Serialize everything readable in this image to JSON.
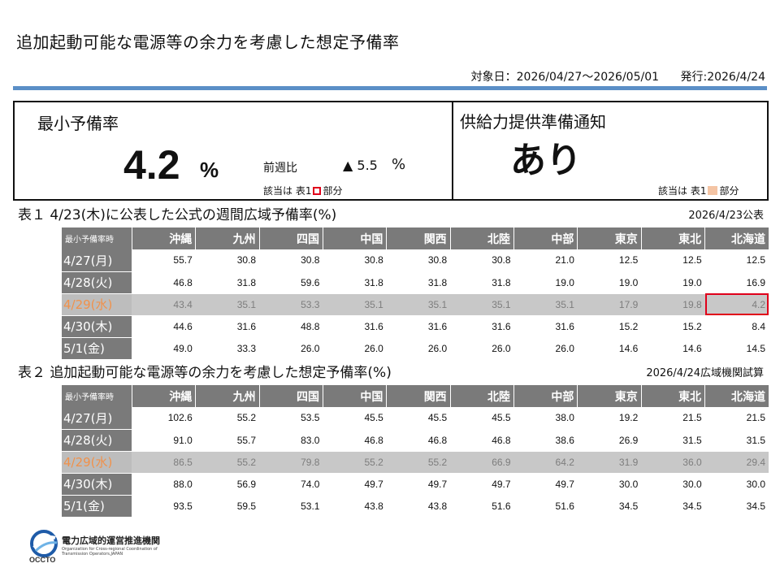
{
  "header": {
    "title": "追加起動可能な電源等の余力を考慮した想定予備率",
    "target_period": "対象日：2026/04/27～2026/05/01",
    "issued": "発行:2026/4/24"
  },
  "summary": {
    "min_label": "最小予備率",
    "min_value": "4.2",
    "min_unit": "%",
    "prev_week_label": "前週比",
    "prev_week_value": "▲ 5.5",
    "prev_week_unit": "%",
    "note1_prefix": "該当は 表1",
    "note1_suffix": "部分",
    "notice_label": "供給力提供準備通知",
    "notice_value": "あり",
    "note2_prefix": "該当は 表1",
    "note2_suffix": "部分",
    "colors": {
      "red_box": "#e0001a",
      "peach_box": "#f4c4a4"
    }
  },
  "columns": [
    "最小予備率時",
    "沖縄",
    "九州",
    "四国",
    "中国",
    "関西",
    "北陸",
    "中部",
    "東京",
    "東北",
    "北海道"
  ],
  "table1": {
    "title": "表１ 4/23(木)に公表した公式の週間広域予備率(%)",
    "date": "2026/4/23公表",
    "rows": [
      {
        "date": "4/27(月)",
        "values": [
          "55.7",
          "30.8",
          "30.8",
          "30.8",
          "30.8",
          "30.8",
          "21.0",
          "12.5",
          "12.5",
          "12.5"
        ]
      },
      {
        "date": "4/28(火)",
        "values": [
          "46.8",
          "31.8",
          "59.6",
          "31.8",
          "31.8",
          "31.8",
          "19.0",
          "19.0",
          "19.0",
          "16.9"
        ]
      },
      {
        "date": "4/29(水)",
        "values": [
          "43.4",
          "35.1",
          "53.3",
          "35.1",
          "35.1",
          "35.1",
          "35.1",
          "17.9",
          "19.8",
          "4.2"
        ]
      },
      {
        "date": "4/30(木)",
        "values": [
          "44.6",
          "31.6",
          "48.8",
          "31.6",
          "31.6",
          "31.6",
          "31.6",
          "15.2",
          "15.2",
          "8.4"
        ]
      },
      {
        "date": "5/1(金)",
        "values": [
          "49.0",
          "33.3",
          "26.0",
          "26.0",
          "26.0",
          "26.0",
          "26.0",
          "14.6",
          "14.6",
          "14.5"
        ]
      }
    ]
  },
  "table2": {
    "title": "表２ 追加起動可能な電源等の余力を考慮した想定予備率(%)",
    "date": "2026/4/24広域機関試算",
    "rows": [
      {
        "date": "4/27(月)",
        "values": [
          "102.6",
          "55.2",
          "53.5",
          "45.5",
          "45.5",
          "45.5",
          "38.0",
          "19.2",
          "21.5",
          "21.5"
        ]
      },
      {
        "date": "4/28(火)",
        "values": [
          "91.0",
          "55.7",
          "83.0",
          "46.8",
          "46.8",
          "46.8",
          "38.6",
          "26.9",
          "31.5",
          "31.5"
        ]
      },
      {
        "date": "4/29(水)",
        "values": [
          "86.5",
          "55.2",
          "79.8",
          "55.2",
          "55.2",
          "66.9",
          "64.2",
          "31.9",
          "36.0",
          "29.4"
        ]
      },
      {
        "date": "4/30(木)",
        "values": [
          "88.0",
          "56.9",
          "74.0",
          "49.7",
          "49.7",
          "49.7",
          "49.7",
          "30.0",
          "30.0",
          "30.0"
        ]
      },
      {
        "date": "5/1(金)",
        "values": [
          "93.5",
          "59.5",
          "53.1",
          "43.8",
          "43.8",
          "51.6",
          "51.6",
          "34.5",
          "34.5",
          "34.5"
        ]
      }
    ]
  },
  "footer": {
    "org_name": "電力広域的運営推進機関",
    "org_en": "Organization for Cross-regional Coordination of Transmission Operators,JAPAN",
    "logo_text": "OCCTO",
    "logo_icon": "occto-logo-icon"
  }
}
